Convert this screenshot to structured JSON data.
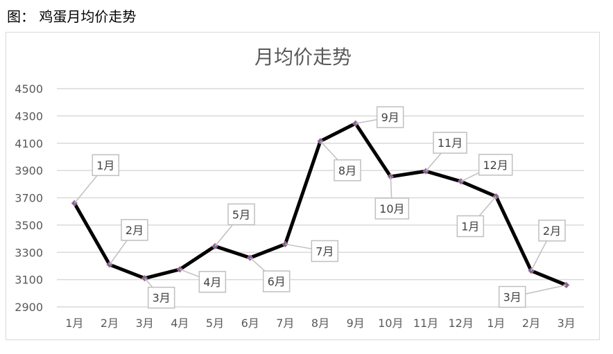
{
  "caption": "图：  鸡蛋月均价走势",
  "chart_data": {
    "type": "line",
    "title": "月均价走势",
    "xlabel": "",
    "ylabel": "",
    "categories": [
      "1月",
      "2月",
      "3月",
      "4月",
      "5月",
      "6月",
      "7月",
      "8月",
      "9月",
      "10月",
      "11月",
      "12月",
      "1月",
      "2月",
      "3月"
    ],
    "y_ticks": [
      "4500",
      "4300",
      "4100",
      "3900",
      "3700",
      "3500",
      "3300",
      "3100",
      "2900"
    ],
    "ylim": [
      2900,
      4500
    ],
    "grid": true,
    "legend": "none",
    "series": [
      {
        "values": [
          3660,
          3210,
          3110,
          3175,
          3345,
          3260,
          3360,
          4115,
          4245,
          3855,
          3895,
          3820,
          3710,
          3165,
          3060
        ],
        "data_labels": [
          "1月",
          "2月",
          "3月",
          "4月",
          "5月",
          "6月",
          "7月",
          "8月",
          "9月",
          "10月",
          "11月",
          "12月",
          "1月",
          "2月",
          "3月"
        ]
      }
    ],
    "colors": {
      "line": "#000000",
      "marker": "#4472c4",
      "grid": "#d9d9d9",
      "text": "#595959",
      "callout_border": "#bfbfbf"
    }
  }
}
